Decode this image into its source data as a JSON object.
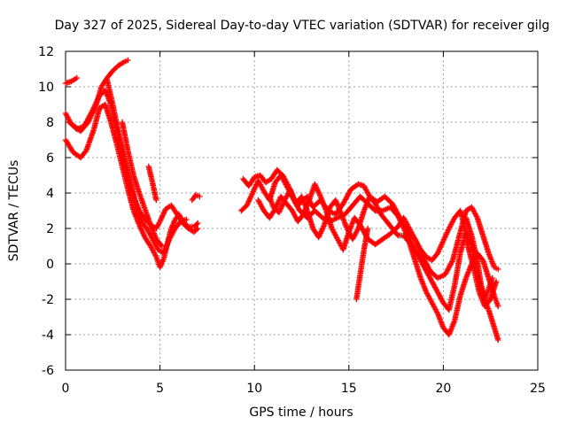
{
  "chart_data": {
    "type": "scatter",
    "title": "Day 327 of 2025, Sidereal Day-to-day VTEC variation (SDTVAR) for receiver gilg",
    "xlabel": "GPS time / hours",
    "ylabel": "SDTVAR / TECUs",
    "xlim": [
      0,
      25
    ],
    "ylim": [
      -6,
      12
    ],
    "xticks": [
      0,
      5,
      10,
      15,
      20,
      25
    ],
    "yticks": [
      -6,
      -4,
      -2,
      0,
      2,
      4,
      6,
      8,
      10,
      12
    ],
    "x_tick_labels": [
      "0",
      "5",
      "10",
      "15",
      "20",
      "25"
    ],
    "y_tick_labels": [
      "-6",
      "-4",
      "-2",
      "0",
      "2",
      "4",
      "6",
      "8",
      "10",
      "12"
    ],
    "grid": true,
    "marker": "+",
    "color": "#ff0000",
    "series": [
      {
        "name": "trace-1",
        "points": [
          [
            0.0,
            10.2
          ],
          [
            0.3,
            10.3
          ],
          [
            0.6,
            10.5
          ]
        ]
      },
      {
        "name": "trace-2",
        "points": [
          [
            0.0,
            8.5
          ],
          [
            0.3,
            7.9
          ],
          [
            0.8,
            7.5
          ],
          [
            1.2,
            8.0
          ],
          [
            1.6,
            8.9
          ],
          [
            1.9,
            10.0
          ],
          [
            2.2,
            10.5
          ],
          [
            2.5,
            10.9
          ],
          [
            2.8,
            11.2
          ],
          [
            3.1,
            11.4
          ],
          [
            3.3,
            11.5
          ]
        ]
      },
      {
        "name": "trace-3",
        "points": [
          [
            0.0,
            7.0
          ],
          [
            0.4,
            6.3
          ],
          [
            0.8,
            6.0
          ],
          [
            1.1,
            6.4
          ],
          [
            1.5,
            7.6
          ],
          [
            1.8,
            8.8
          ],
          [
            2.1,
            9.0
          ],
          [
            2.4,
            8.0
          ],
          [
            2.7,
            6.8
          ],
          [
            3.0,
            5.5
          ],
          [
            3.3,
            4.2
          ],
          [
            3.6,
            3.0
          ],
          [
            3.9,
            2.2
          ],
          [
            4.2,
            1.5
          ],
          [
            4.5,
            1.0
          ],
          [
            4.8,
            0.4
          ],
          [
            5.0,
            -0.2
          ],
          [
            5.2,
            0.3
          ],
          [
            5.4,
            1.2
          ],
          [
            5.6,
            2.0
          ],
          [
            5.8,
            2.5
          ],
          [
            6.0,
            2.8
          ],
          [
            6.2,
            2.4
          ],
          [
            6.5,
            2.1
          ],
          [
            6.8,
            2.1
          ],
          [
            7.0,
            2.3
          ]
        ]
      },
      {
        "name": "trace-4",
        "points": [
          [
            0.2,
            8.0
          ],
          [
            0.6,
            7.6
          ],
          [
            1.0,
            7.8
          ],
          [
            1.4,
            8.6
          ],
          [
            1.8,
            9.5
          ],
          [
            2.1,
            9.8
          ],
          [
            2.4,
            9.0
          ],
          [
            2.7,
            7.6
          ],
          [
            3.0,
            6.2
          ],
          [
            3.3,
            4.8
          ],
          [
            3.6,
            3.8
          ],
          [
            3.9,
            3.0
          ],
          [
            4.2,
            2.5
          ],
          [
            4.5,
            2.2
          ],
          [
            4.8,
            2.0
          ],
          [
            5.0,
            2.4
          ],
          [
            5.3,
            3.1
          ],
          [
            5.6,
            3.3
          ],
          [
            5.9,
            2.8
          ],
          [
            6.2,
            2.3
          ],
          [
            6.5,
            2.0
          ],
          [
            6.8,
            1.8
          ],
          [
            7.0,
            2.0
          ]
        ]
      },
      {
        "name": "trace-5",
        "points": [
          [
            2.2,
            10.4
          ],
          [
            2.5,
            9.0
          ],
          [
            2.8,
            7.4
          ],
          [
            3.1,
            6.0
          ],
          [
            3.4,
            4.8
          ],
          [
            3.7,
            3.5
          ],
          [
            4.0,
            2.4
          ],
          [
            4.3,
            2.0
          ],
          [
            4.6,
            1.4
          ],
          [
            4.9,
            0.8
          ],
          [
            5.2,
            0.6
          ],
          [
            5.5,
            1.4
          ],
          [
            5.8,
            2.0
          ],
          [
            6.1,
            2.4
          ],
          [
            6.4,
            2.5
          ]
        ]
      },
      {
        "name": "trace-6",
        "points": [
          [
            3.0,
            8.0
          ],
          [
            3.3,
            6.4
          ],
          [
            3.6,
            5.0
          ],
          [
            3.9,
            4.0
          ],
          [
            4.2,
            3.1
          ],
          [
            4.5,
            2.2
          ],
          [
            4.8,
            1.4
          ],
          [
            5.1,
            1.0
          ]
        ]
      },
      {
        "name": "trace-7",
        "points": [
          [
            4.4,
            5.5
          ],
          [
            4.6,
            4.6
          ],
          [
            4.8,
            3.6
          ]
        ]
      },
      {
        "name": "trace-8",
        "points": [
          [
            6.7,
            3.6
          ],
          [
            6.9,
            3.9
          ],
          [
            7.1,
            3.8
          ]
        ]
      },
      {
        "name": "trace-9",
        "points": [
          [
            9.3,
            3.0
          ],
          [
            9.6,
            3.3
          ],
          [
            9.9,
            4.0
          ],
          [
            10.2,
            4.7
          ],
          [
            10.5,
            4.1
          ],
          [
            10.8,
            3.6
          ],
          [
            11.1,
            4.6
          ],
          [
            11.4,
            5.0
          ],
          [
            11.7,
            4.4
          ],
          [
            12.0,
            3.8
          ],
          [
            12.4,
            3.0
          ],
          [
            12.8,
            2.6
          ],
          [
            13.2,
            3.0
          ],
          [
            13.6,
            2.6
          ],
          [
            14.0,
            2.4
          ],
          [
            14.4,
            2.6
          ],
          [
            14.8,
            2.8
          ],
          [
            15.2,
            3.3
          ],
          [
            15.6,
            3.8
          ],
          [
            16.0,
            3.4
          ],
          [
            16.4,
            3.0
          ],
          [
            16.8,
            3.0
          ],
          [
            17.2,
            3.2
          ],
          [
            17.6,
            2.7
          ],
          [
            18.0,
            1.8
          ],
          [
            18.4,
            1.0
          ],
          [
            18.8,
            0.2
          ],
          [
            19.2,
            -0.6
          ],
          [
            19.6,
            -1.4
          ],
          [
            20.0,
            -2.2
          ],
          [
            20.3,
            -2.6
          ],
          [
            20.6,
            -1.2
          ],
          [
            20.9,
            0.6
          ],
          [
            21.2,
            1.8
          ],
          [
            21.5,
            1.0
          ],
          [
            21.8,
            -0.6
          ],
          [
            22.1,
            -1.8
          ],
          [
            22.4,
            -2.6
          ],
          [
            22.7,
            -3.6
          ],
          [
            22.9,
            -4.3
          ]
        ]
      },
      {
        "name": "trace-10",
        "points": [
          [
            9.4,
            4.8
          ],
          [
            9.7,
            4.4
          ],
          [
            10.0,
            4.9
          ],
          [
            10.3,
            5.0
          ],
          [
            10.6,
            4.6
          ],
          [
            10.9,
            4.8
          ],
          [
            11.2,
            5.3
          ],
          [
            11.5,
            5.0
          ],
          [
            11.8,
            4.4
          ],
          [
            12.1,
            3.6
          ],
          [
            12.4,
            3.4
          ],
          [
            12.8,
            3.8
          ],
          [
            13.1,
            3.2
          ],
          [
            13.5,
            3.6
          ],
          [
            13.9,
            3.0
          ],
          [
            14.3,
            2.8
          ],
          [
            14.7,
            3.4
          ],
          [
            15.1,
            4.2
          ],
          [
            15.5,
            4.5
          ],
          [
            15.8,
            4.4
          ],
          [
            16.1,
            3.8
          ],
          [
            16.5,
            3.5
          ],
          [
            16.9,
            3.8
          ],
          [
            17.3,
            3.4
          ],
          [
            17.7,
            2.6
          ],
          [
            18.1,
            1.8
          ],
          [
            18.5,
            1.4
          ],
          [
            18.9,
            0.4
          ],
          [
            19.3,
            -0.4
          ],
          [
            19.7,
            -0.8
          ],
          [
            20.1,
            -0.6
          ],
          [
            20.5,
            0.2
          ],
          [
            20.9,
            1.8
          ],
          [
            21.2,
            3.0
          ],
          [
            21.5,
            3.2
          ],
          [
            21.8,
            2.6
          ],
          [
            22.1,
            1.6
          ],
          [
            22.4,
            0.6
          ],
          [
            22.7,
            -0.2
          ],
          [
            22.9,
            -0.3
          ]
        ]
      },
      {
        "name": "trace-11",
        "points": [
          [
            10.2,
            3.6
          ],
          [
            10.5,
            3.0
          ],
          [
            10.8,
            2.6
          ],
          [
            11.1,
            3.1
          ],
          [
            11.4,
            3.8
          ],
          [
            11.7,
            3.4
          ],
          [
            12.0,
            3.0
          ],
          [
            12.3,
            2.4
          ],
          [
            12.6,
            2.8
          ],
          [
            12.9,
            3.6
          ],
          [
            13.2,
            4.5
          ],
          [
            13.5,
            3.8
          ],
          [
            13.8,
            3.0
          ],
          [
            14.1,
            2.0
          ],
          [
            14.4,
            1.4
          ],
          [
            14.7,
            0.8
          ],
          [
            15.0,
            1.8
          ],
          [
            15.3,
            2.6
          ],
          [
            15.6,
            2.2
          ],
          [
            16.0,
            1.4
          ],
          [
            16.4,
            1.1
          ],
          [
            16.8,
            1.4
          ],
          [
            17.2,
            1.7
          ],
          [
            17.6,
            2.1
          ],
          [
            17.9,
            2.6
          ],
          [
            18.2,
            2.0
          ],
          [
            18.5,
            1.4
          ],
          [
            18.8,
            0.8
          ],
          [
            19.1,
            0.4
          ],
          [
            19.4,
            0.2
          ],
          [
            19.7,
            0.6
          ],
          [
            20.0,
            1.3
          ],
          [
            20.3,
            2.0
          ],
          [
            20.6,
            2.6
          ],
          [
            20.9,
            3.0
          ],
          [
            21.1,
            2.2
          ],
          [
            21.3,
            1.0
          ],
          [
            21.6,
            -0.2
          ],
          [
            21.9,
            -1.6
          ],
          [
            22.2,
            -2.4
          ],
          [
            22.5,
            -2.0
          ],
          [
            22.8,
            -1.0
          ]
        ]
      },
      {
        "name": "trace-12",
        "points": [
          [
            10.8,
            3.8
          ],
          [
            11.0,
            3.2
          ],
          [
            11.3,
            2.9
          ],
          [
            11.6,
            3.6
          ],
          [
            11.9,
            4.2
          ],
          [
            12.2,
            3.4
          ],
          [
            12.5,
            3.8
          ],
          [
            12.8,
            3.0
          ],
          [
            13.1,
            2.0
          ],
          [
            13.4,
            1.5
          ],
          [
            13.7,
            2.2
          ],
          [
            14.0,
            3.2
          ],
          [
            14.3,
            3.6
          ],
          [
            14.6,
            2.8
          ],
          [
            14.9,
            2.0
          ],
          [
            15.2,
            1.4
          ],
          [
            15.5,
            2.0
          ],
          [
            15.8,
            3.0
          ],
          [
            16.1,
            3.8
          ],
          [
            16.4,
            3.4
          ],
          [
            16.7,
            2.8
          ],
          [
            17.0,
            2.4
          ],
          [
            17.3,
            2.0
          ],
          [
            17.6,
            1.6
          ],
          [
            17.9,
            1.6
          ],
          [
            18.2,
            1.2
          ],
          [
            18.5,
            0.2
          ],
          [
            18.8,
            -0.8
          ],
          [
            19.1,
            -1.6
          ],
          [
            19.4,
            -2.2
          ],
          [
            19.7,
            -2.8
          ],
          [
            20.0,
            -3.6
          ],
          [
            20.3,
            -4.0
          ],
          [
            20.6,
            -3.2
          ],
          [
            20.9,
            -1.8
          ],
          [
            21.2,
            -0.8
          ],
          [
            21.5,
            0.0
          ],
          [
            21.8,
            0.6
          ],
          [
            22.1,
            0.2
          ],
          [
            22.4,
            -0.8
          ],
          [
            22.7,
            -1.8
          ],
          [
            22.9,
            -2.4
          ]
        ]
      },
      {
        "name": "trace-13",
        "points": [
          [
            15.4,
            -2.0
          ],
          [
            15.6,
            -0.6
          ],
          [
            15.8,
            0.8
          ],
          [
            16.0,
            2.0
          ]
        ]
      },
      {
        "name": "trace-14",
        "points": [
          [
            21.2,
            2.6
          ],
          [
            21.5,
            1.6
          ],
          [
            21.8,
            0.2
          ],
          [
            22.0,
            -1.2
          ],
          [
            22.2,
            -2.0
          ],
          [
            22.4,
            -1.4
          ],
          [
            22.6,
            -0.8
          ]
        ]
      }
    ]
  }
}
